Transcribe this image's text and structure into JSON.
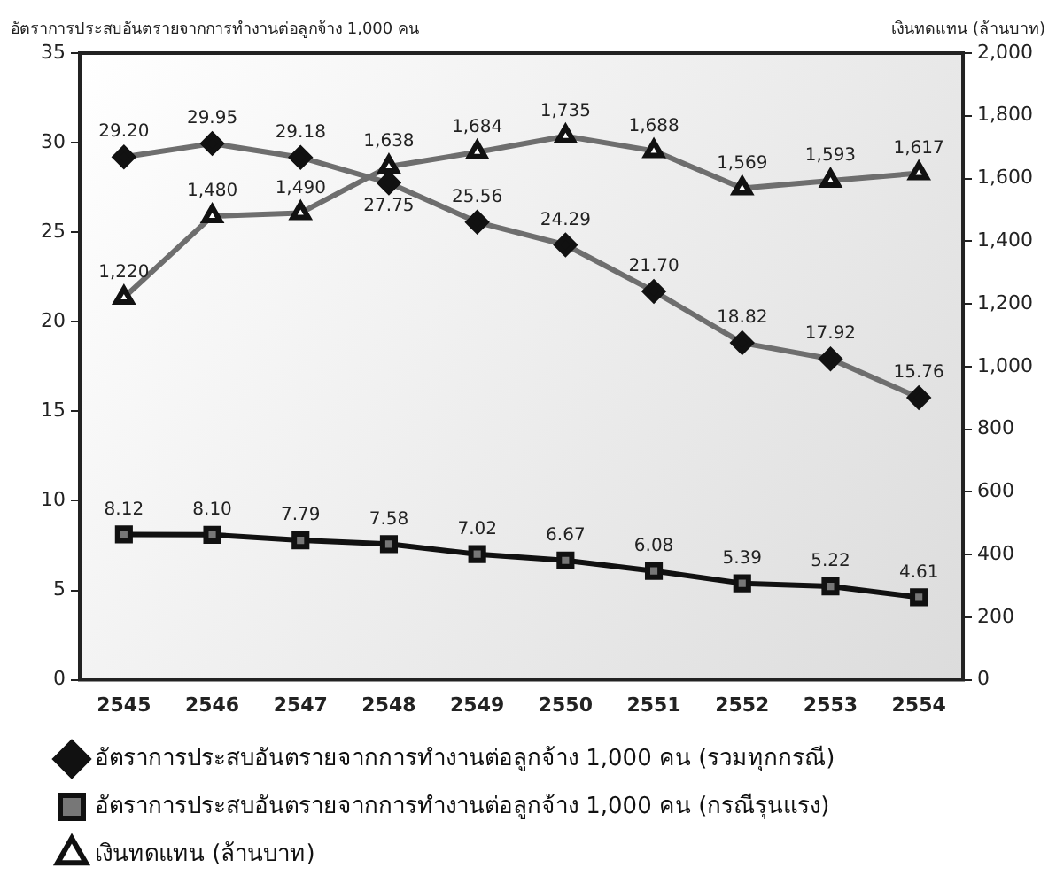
{
  "chart_data": {
    "type": "line",
    "ylabel": "อัตราการประสบอันตรายจากการทำงานต่อลูกจ้าง 1,000 คน",
    "y2label": "เงินทดแทน (ล้านบาท)",
    "categories": [
      "2545",
      "2546",
      "2547",
      "2548",
      "2549",
      "2550",
      "2551",
      "2552",
      "2553",
      "2554"
    ],
    "series": [
      {
        "name": "อัตราการประสบอันตรายจากการทำงานต่อลูกจ้าง 1,000 คน (รวมทุกกรณี)",
        "color": "#6e6e6e",
        "marker": "diamond",
        "values": [
          29.2,
          29.95,
          29.18,
          27.75,
          25.56,
          24.29,
          21.7,
          18.82,
          17.92,
          15.76
        ],
        "value_labels": [
          "29.20",
          "29.95",
          "29.18",
          "27.75",
          "25.56",
          "24.29",
          "21.70",
          "18.82",
          "17.92",
          "15.76"
        ]
      },
      {
        "name": "อัตราการประสบอันตรายจากการทำงานต่อลูกจ้าง 1,000 คน (กรณีรุนแรง)",
        "color": "#111111",
        "marker": "square",
        "values": [
          8.12,
          8.1,
          7.79,
          7.58,
          7.02,
          6.67,
          6.08,
          5.39,
          5.22,
          4.61
        ],
        "value_labels": [
          "8.12",
          "8.10",
          "7.79",
          "7.58",
          "7.02",
          "6.67",
          "6.08",
          "5.39",
          "5.22",
          "4.61"
        ]
      },
      {
        "name": "เงินทดแทน (ล้านบาท)",
        "color": "#6e6e6e",
        "marker": "triangle",
        "axis": "y2",
        "values": [
          1220,
          1480,
          1490,
          1638,
          1684,
          1735,
          1688,
          1569,
          1593,
          1617
        ],
        "value_labels": [
          "1,220",
          "1,480",
          "1,490",
          "1,638",
          "1,684",
          "1,735",
          "1,688",
          "1,569",
          "1,593",
          "1,617"
        ]
      }
    ],
    "ylim": [
      0,
      35
    ],
    "yticks": [
      0,
      5,
      10,
      15,
      20,
      25,
      30,
      35
    ],
    "y2lim": [
      0,
      2000
    ],
    "y2ticks": [
      0,
      200,
      400,
      600,
      800,
      {
        "value": 1000,
        "label": "1,000"
      },
      {
        "value": 1200,
        "label": "1,200"
      },
      {
        "value": 1400,
        "label": "1,400"
      },
      {
        "value": 1600,
        "label": "1,600"
      },
      {
        "value": 1800,
        "label": "1,800"
      },
      {
        "value": 2000,
        "label": "2,000"
      }
    ],
    "grid": false,
    "legend": "bottom"
  }
}
